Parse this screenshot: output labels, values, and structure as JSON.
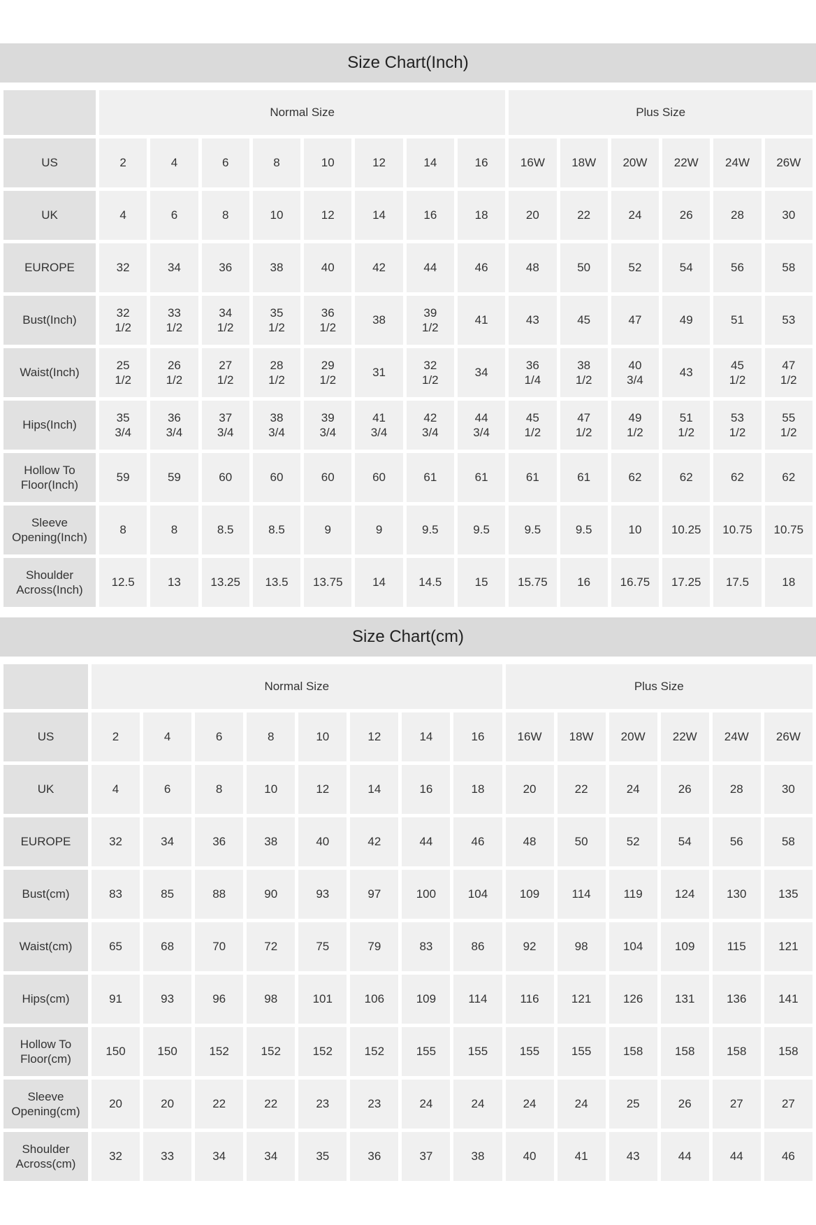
{
  "tables": [
    {
      "id": "inch",
      "title": "Size Chart(Inch)",
      "group_headers": [
        {
          "label": "Normal Size",
          "span": 8
        },
        {
          "label": "Plus Size",
          "span": 6
        }
      ],
      "rows": [
        {
          "label": "US",
          "values": [
            "2",
            "4",
            "6",
            "8",
            "10",
            "12",
            "14",
            "16",
            "16W",
            "18W",
            "20W",
            "22W",
            "24W",
            "26W"
          ]
        },
        {
          "label": "UK",
          "values": [
            "4",
            "6",
            "8",
            "10",
            "12",
            "14",
            "16",
            "18",
            "20",
            "22",
            "24",
            "26",
            "28",
            "30"
          ]
        },
        {
          "label": "EUROPE",
          "values": [
            "32",
            "34",
            "36",
            "38",
            "40",
            "42",
            "44",
            "46",
            "48",
            "50",
            "52",
            "54",
            "56",
            "58"
          ]
        },
        {
          "label": "Bust(Inch)",
          "values": [
            "32\n1/2",
            "33\n1/2",
            "34\n1/2",
            "35\n1/2",
            "36\n1/2",
            "38",
            "39\n1/2",
            "41",
            "43",
            "45",
            "47",
            "49",
            "51",
            "53"
          ]
        },
        {
          "label": "Waist(Inch)",
          "values": [
            "25\n1/2",
            "26\n1/2",
            "27\n1/2",
            "28\n1/2",
            "29\n1/2",
            "31",
            "32\n1/2",
            "34",
            "36\n1/4",
            "38\n1/2",
            "40\n3/4",
            "43",
            "45\n1/2",
            "47\n1/2"
          ]
        },
        {
          "label": "Hips(Inch)",
          "values": [
            "35\n3/4",
            "36\n3/4",
            "37\n3/4",
            "38\n3/4",
            "39\n3/4",
            "41\n3/4",
            "42\n3/4",
            "44\n3/4",
            "45\n1/2",
            "47\n1/2",
            "49\n1/2",
            "51\n1/2",
            "53\n1/2",
            "55\n1/2"
          ]
        },
        {
          "label": "Hollow To\nFloor(Inch)",
          "values": [
            "59",
            "59",
            "60",
            "60",
            "60",
            "60",
            "61",
            "61",
            "61",
            "61",
            "62",
            "62",
            "62",
            "62"
          ]
        },
        {
          "label": "Sleeve\nOpening(Inch)",
          "values": [
            "8",
            "8",
            "8.5",
            "8.5",
            "9",
            "9",
            "9.5",
            "9.5",
            "9.5",
            "9.5",
            "10",
            "10.25",
            "10.75",
            "10.75"
          ]
        },
        {
          "label": "Shoulder\nAcross(Inch)",
          "values": [
            "12.5",
            "13",
            "13.25",
            "13.5",
            "13.75",
            "14",
            "14.5",
            "15",
            "15.75",
            "16",
            "16.75",
            "17.25",
            "17.5",
            "18"
          ]
        }
      ]
    },
    {
      "id": "cm",
      "title": "Size Chart(cm)",
      "group_headers": [
        {
          "label": "Normal Size",
          "span": 8
        },
        {
          "label": "Plus Size",
          "span": 6
        }
      ],
      "rows": [
        {
          "label": "US",
          "values": [
            "2",
            "4",
            "6",
            "8",
            "10",
            "12",
            "14",
            "16",
            "16W",
            "18W",
            "20W",
            "22W",
            "24W",
            "26W"
          ]
        },
        {
          "label": "UK",
          "values": [
            "4",
            "6",
            "8",
            "10",
            "12",
            "14",
            "16",
            "18",
            "20",
            "22",
            "24",
            "26",
            "28",
            "30"
          ]
        },
        {
          "label": "EUROPE",
          "values": [
            "32",
            "34",
            "36",
            "38",
            "40",
            "42",
            "44",
            "46",
            "48",
            "50",
            "52",
            "54",
            "56",
            "58"
          ]
        },
        {
          "label": "Bust(cm)",
          "values": [
            "83",
            "85",
            "88",
            "90",
            "93",
            "97",
            "100",
            "104",
            "109",
            "114",
            "119",
            "124",
            "130",
            "135"
          ]
        },
        {
          "label": "Waist(cm)",
          "values": [
            "65",
            "68",
            "70",
            "72",
            "75",
            "79",
            "83",
            "86",
            "92",
            "98",
            "104",
            "109",
            "115",
            "121"
          ]
        },
        {
          "label": "Hips(cm)",
          "values": [
            "91",
            "93",
            "96",
            "98",
            "101",
            "106",
            "109",
            "114",
            "116",
            "121",
            "126",
            "131",
            "136",
            "141"
          ]
        },
        {
          "label": "Hollow To\nFloor(cm)",
          "values": [
            "150",
            "150",
            "152",
            "152",
            "152",
            "152",
            "155",
            "155",
            "155",
            "155",
            "158",
            "158",
            "158",
            "158"
          ]
        },
        {
          "label": "Sleeve\nOpening(cm)",
          "values": [
            "20",
            "20",
            "22",
            "22",
            "23",
            "23",
            "24",
            "24",
            "24",
            "24",
            "25",
            "26",
            "27",
            "27"
          ]
        },
        {
          "label": "Shoulder\nAcross(cm)",
          "values": [
            "32",
            "33",
            "34",
            "34",
            "35",
            "36",
            "37",
            "38",
            "40",
            "41",
            "43",
            "44",
            "44",
            "46"
          ]
        }
      ]
    }
  ],
  "colors": {
    "title_bar_bg": "#dadada",
    "row_label_bg": "#e1e1e1",
    "data_cell_bg": "#f0f0f0",
    "text": "#333333"
  }
}
